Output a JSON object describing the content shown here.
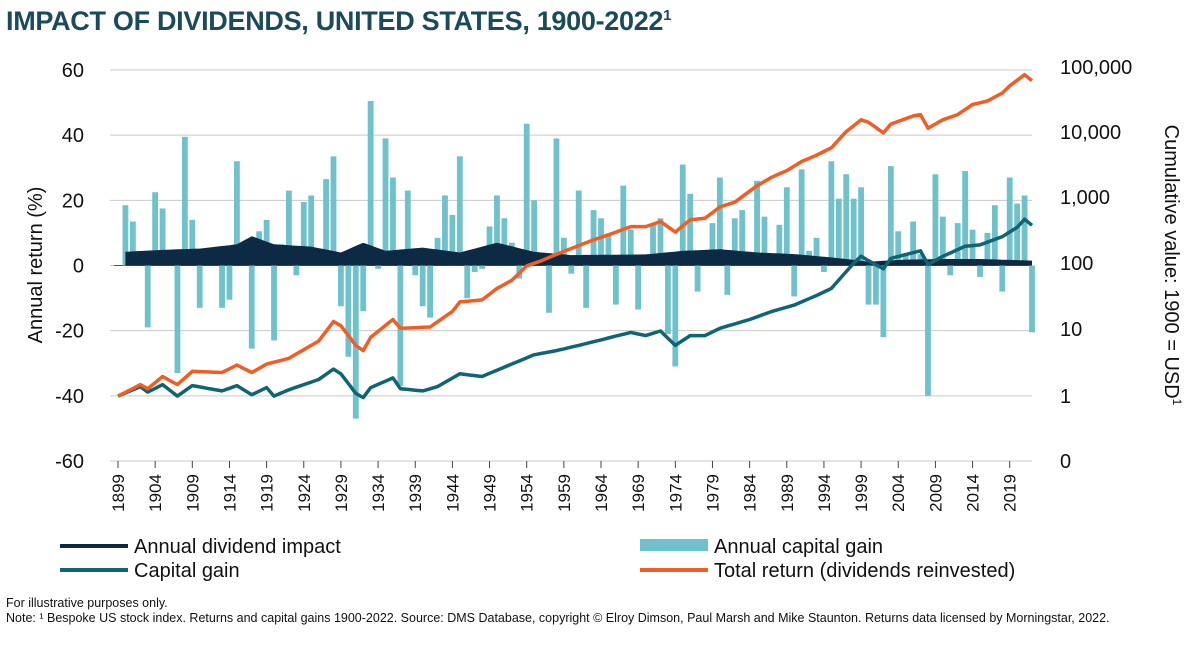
{
  "title": "IMPACT OF DIVIDENDS, UNITED STATES, 1900-2022",
  "title_sup": "1",
  "notes": [
    "For illustrative purposes only.",
    "Note: ¹ Bespoke US stock index. Returns and capital gains 1900-2022. Source: DMS Database, copyright © Elroy Dimson, Paul Marsh and Mike Staunton. Returns data licensed by Morningstar, 2022."
  ],
  "colors": {
    "dividend": "#0c2a44",
    "capital_gain_bars": "#6fc1cb",
    "capital_gain_line": "#0f6475",
    "total_return": "#f15d22",
    "title": "#1b4b5b"
  },
  "chart_data": {
    "type": "bar",
    "ylabel": "Annual return (%)",
    "y2label": "Cumulative value: 1900 = USD",
    "y2label_sup": "1",
    "ylim": [
      -60,
      60
    ],
    "yticks": [
      60,
      40,
      20,
      0,
      -20,
      -40,
      -60
    ],
    "y2scale": "log",
    "y2ticks": [
      "100,000",
      "10,000",
      "1,000",
      "100",
      "10",
      "1",
      "0"
    ],
    "xticks": [
      "1899",
      "1904",
      "1909",
      "1914",
      "1919",
      "1924",
      "1929",
      "1934",
      "1939",
      "1944",
      "1949",
      "1954",
      "1959",
      "1964",
      "1969",
      "1974",
      "1979",
      "1984",
      "1989",
      "1994",
      "1999",
      "2004",
      "2009",
      "2014",
      "2019"
    ],
    "years_start": 1900,
    "years_end": 2022,
    "grid": true,
    "legend_position": "bottom",
    "legend": [
      {
        "label": "Annual dividend impact",
        "key": "dividend"
      },
      {
        "label": "Annual capital gain",
        "key": "capital_gain_bars"
      },
      {
        "label": "Capital gain",
        "key": "capital_gain_line"
      },
      {
        "label": "Total return (dividends reinvested)",
        "key": "total_return"
      }
    ],
    "dividend_anchors": [
      [
        1900,
        4.2
      ],
      [
        1905,
        4.8
      ],
      [
        1910,
        5.2
      ],
      [
        1915,
        6.5
      ],
      [
        1917,
        9.0
      ],
      [
        1920,
        6.5
      ],
      [
        1925,
        5.8
      ],
      [
        1929,
        4.0
      ],
      [
        1932,
        7.0
      ],
      [
        1935,
        4.5
      ],
      [
        1940,
        5.5
      ],
      [
        1945,
        4.0
      ],
      [
        1950,
        7.0
      ],
      [
        1955,
        4.2
      ],
      [
        1960,
        3.2
      ],
      [
        1970,
        3.4
      ],
      [
        1975,
        4.5
      ],
      [
        1980,
        5.0
      ],
      [
        1985,
        4.0
      ],
      [
        1990,
        3.5
      ],
      [
        1995,
        2.5
      ],
      [
        2000,
        1.2
      ],
      [
        2005,
        1.8
      ],
      [
        2010,
        2.0
      ],
      [
        2015,
        2.0
      ],
      [
        2022,
        1.5
      ]
    ],
    "annual_capital_gain_bars": [
      [
        1900,
        18.5
      ],
      [
        1901,
        13.5
      ],
      [
        1902,
        1.5
      ],
      [
        1903,
        -19
      ],
      [
        1904,
        22.5
      ],
      [
        1905,
        17.5
      ],
      [
        1906,
        2
      ],
      [
        1907,
        -33
      ],
      [
        1908,
        39.5
      ],
      [
        1909,
        14
      ],
      [
        1910,
        -13
      ],
      [
        1911,
        0.5
      ],
      [
        1912,
        2
      ],
      [
        1913,
        -13
      ],
      [
        1914,
        -10.5
      ],
      [
        1915,
        32
      ],
      [
        1916,
        6
      ],
      [
        1917,
        -25.5
      ],
      [
        1918,
        10.5
      ],
      [
        1919,
        14
      ],
      [
        1920,
        -23
      ],
      [
        1921,
        6.5
      ],
      [
        1922,
        23
      ],
      [
        1923,
        -3
      ],
      [
        1924,
        19.5
      ],
      [
        1925,
        21.5
      ],
      [
        1926,
        4.5
      ],
      [
        1927,
        26.5
      ],
      [
        1928,
        33.5
      ],
      [
        1929,
        -12.5
      ],
      [
        1930,
        -28
      ],
      [
        1931,
        -47
      ],
      [
        1932,
        -14
      ],
      [
        1933,
        50.5
      ],
      [
        1934,
        -1
      ],
      [
        1935,
        39
      ],
      [
        1936,
        27
      ],
      [
        1937,
        -37
      ],
      [
        1938,
        23
      ],
      [
        1939,
        -3
      ],
      [
        1940,
        -12.5
      ],
      [
        1941,
        -16
      ],
      [
        1942,
        8.5
      ],
      [
        1943,
        21.5
      ],
      [
        1944,
        15.5
      ],
      [
        1945,
        33.5
      ],
      [
        1946,
        -10
      ],
      [
        1947,
        -2
      ],
      [
        1948,
        -1
      ],
      [
        1949,
        12
      ],
      [
        1950,
        21.5
      ],
      [
        1951,
        14.5
      ],
      [
        1952,
        7
      ],
      [
        1953,
        -4
      ],
      [
        1954,
        43.5
      ],
      [
        1955,
        20
      ],
      [
        1956,
        3.5
      ],
      [
        1957,
        -14.5
      ],
      [
        1958,
        39
      ],
      [
        1959,
        8.5
      ],
      [
        1960,
        -2.5
      ],
      [
        1961,
        23
      ],
      [
        1962,
        -13
      ],
      [
        1963,
        17
      ],
      [
        1964,
        14.5
      ],
      [
        1965,
        9.5
      ],
      [
        1966,
        -12
      ],
      [
        1967,
        24.5
      ],
      [
        1968,
        11
      ],
      [
        1969,
        -13.5
      ],
      [
        1970,
        0.5
      ],
      [
        1971,
        12.5
      ],
      [
        1972,
        14.5
      ],
      [
        1973,
        -21
      ],
      [
        1974,
        -31
      ],
      [
        1975,
        31
      ],
      [
        1976,
        22
      ],
      [
        1977,
        -8
      ],
      [
        1978,
        1.5
      ],
      [
        1979,
        13
      ],
      [
        1980,
        27
      ],
      [
        1981,
        -9
      ],
      [
        1982,
        14.5
      ],
      [
        1983,
        17
      ],
      [
        1984,
        1.5
      ],
      [
        1985,
        26
      ],
      [
        1986,
        15
      ],
      [
        1987,
        2
      ],
      [
        1988,
        12.5
      ],
      [
        1989,
        24
      ],
      [
        1990,
        -9.5
      ],
      [
        1991,
        29.5
      ],
      [
        1992,
        4.5
      ],
      [
        1993,
        8.5
      ],
      [
        1994,
        -2
      ],
      [
        1995,
        32
      ],
      [
        1996,
        20.5
      ],
      [
        1997,
        28
      ],
      [
        1998,
        20.5
      ],
      [
        1999,
        24
      ],
      [
        2000,
        -12
      ],
      [
        2001,
        -12
      ],
      [
        2002,
        -22
      ],
      [
        2003,
        30.5
      ],
      [
        2004,
        10.5
      ],
      [
        2005,
        3.5
      ],
      [
        2006,
        13.5
      ],
      [
        2007,
        3.5
      ],
      [
        2008,
        -40
      ],
      [
        2009,
        28
      ],
      [
        2010,
        15
      ],
      [
        2011,
        -3
      ],
      [
        2012,
        13
      ],
      [
        2013,
        29
      ],
      [
        2014,
        11
      ],
      [
        2015,
        -3.5
      ],
      [
        2016,
        10
      ],
      [
        2017,
        18.5
      ],
      [
        2018,
        -8
      ],
      [
        2019,
        27
      ],
      [
        2020,
        19
      ],
      [
        2021,
        21.5
      ],
      [
        2022,
        -20.5
      ]
    ],
    "capital_gain_line_anchors": [
      [
        1899,
        1.0
      ],
      [
        1902,
        1.4
      ],
      [
        1903,
        1.15
      ],
      [
        1905,
        1.5
      ],
      [
        1907,
        1.0
      ],
      [
        1909,
        1.45
      ],
      [
        1913,
        1.2
      ],
      [
        1915,
        1.45
      ],
      [
        1917,
        1.05
      ],
      [
        1919,
        1.35
      ],
      [
        1920,
        1.0
      ],
      [
        1922,
        1.25
      ],
      [
        1926,
        1.8
      ],
      [
        1928,
        2.6
      ],
      [
        1929,
        2.2
      ],
      [
        1931,
        1.1
      ],
      [
        1932,
        0.95
      ],
      [
        1933,
        1.35
      ],
      [
        1936,
        1.9
      ],
      [
        1937,
        1.3
      ],
      [
        1940,
        1.2
      ],
      [
        1942,
        1.4
      ],
      [
        1945,
        2.2
      ],
      [
        1948,
        2.0
      ],
      [
        1950,
        2.5
      ],
      [
        1955,
        4.3
      ],
      [
        1958,
        5.0
      ],
      [
        1961,
        6.0
      ],
      [
        1965,
        7.8
      ],
      [
        1968,
        9.5
      ],
      [
        1970,
        8.5
      ],
      [
        1972,
        10.0
      ],
      [
        1974,
        6.0
      ],
      [
        1976,
        8.5
      ],
      [
        1978,
        8.5
      ],
      [
        1980,
        11.0
      ],
      [
        1984,
        15.0
      ],
      [
        1987,
        20.0
      ],
      [
        1990,
        25.0
      ],
      [
        1993,
        35.0
      ],
      [
        1995,
        45.0
      ],
      [
        1998,
        110.0
      ],
      [
        1999,
        140.0
      ],
      [
        2000,
        120.0
      ],
      [
        2002,
        90.0
      ],
      [
        2003,
        130.0
      ],
      [
        2007,
        170.0
      ],
      [
        2008,
        105.0
      ],
      [
        2010,
        140.0
      ],
      [
        2013,
        200.0
      ],
      [
        2015,
        210.0
      ],
      [
        2018,
        280.0
      ],
      [
        2020,
        390.0
      ],
      [
        2021,
        520.0
      ],
      [
        2022,
        420.0
      ]
    ],
    "total_return_anchors": [
      [
        1899,
        1.0
      ],
      [
        1902,
        1.5
      ],
      [
        1903,
        1.3
      ],
      [
        1905,
        2.0
      ],
      [
        1907,
        1.5
      ],
      [
        1909,
        2.4
      ],
      [
        1913,
        2.3
      ],
      [
        1915,
        3.0
      ],
      [
        1917,
        2.3
      ],
      [
        1919,
        3.1
      ],
      [
        1922,
        3.8
      ],
      [
        1926,
        7.0
      ],
      [
        1928,
        14.0
      ],
      [
        1929,
        12.0
      ],
      [
        1931,
        6.0
      ],
      [
        1932,
        5.0
      ],
      [
        1933,
        8.0
      ],
      [
        1936,
        15.0
      ],
      [
        1937,
        11.0
      ],
      [
        1941,
        11.5
      ],
      [
        1944,
        20.0
      ],
      [
        1945,
        28.0
      ],
      [
        1948,
        30.0
      ],
      [
        1950,
        45.0
      ],
      [
        1952,
        60.0
      ],
      [
        1954,
        100.0
      ],
      [
        1956,
        120.0
      ],
      [
        1958,
        150.0
      ],
      [
        1960,
        185.0
      ],
      [
        1963,
        250.0
      ],
      [
        1965,
        300.0
      ],
      [
        1968,
        400.0
      ],
      [
        1970,
        400.0
      ],
      [
        1972,
        480.0
      ],
      [
        1974,
        330.0
      ],
      [
        1976,
        510.0
      ],
      [
        1978,
        540.0
      ],
      [
        1980,
        800.0
      ],
      [
        1982,
        950.0
      ],
      [
        1985,
        1700.0
      ],
      [
        1987,
        2300.0
      ],
      [
        1989,
        2900.0
      ],
      [
        1991,
        4000.0
      ],
      [
        1993,
        5000.0
      ],
      [
        1995,
        6500.0
      ],
      [
        1997,
        11500.0
      ],
      [
        1999,
        17500.0
      ],
      [
        2000,
        16000.0
      ],
      [
        2002,
        11000.0
      ],
      [
        2003,
        15000.0
      ],
      [
        2006,
        20000.0
      ],
      [
        2007,
        21000.0
      ],
      [
        2008,
        13000.0
      ],
      [
        2010,
        17500.0
      ],
      [
        2012,
        21000.0
      ],
      [
        2014,
        30000.0
      ],
      [
        2016,
        34000.0
      ],
      [
        2018,
        45000.0
      ],
      [
        2019,
        58000.0
      ],
      [
        2021,
        86000.0
      ],
      [
        2022,
        70000.0
      ]
    ]
  }
}
